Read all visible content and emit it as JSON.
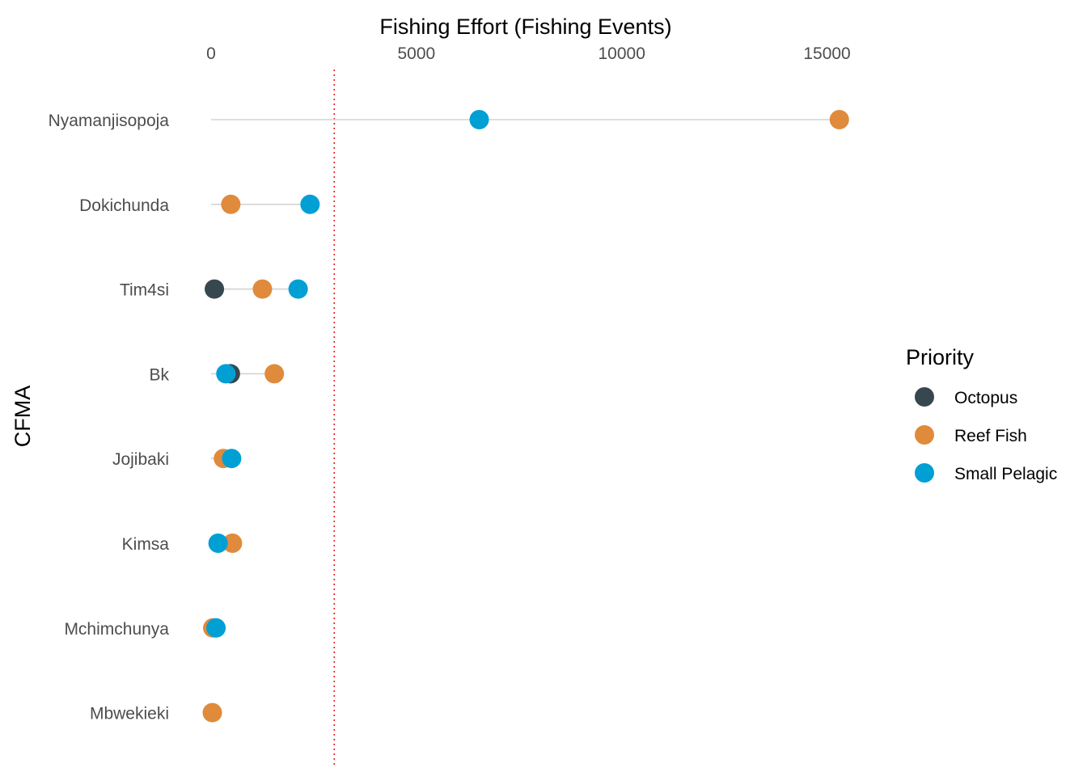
{
  "chart_data": {
    "type": "scatter",
    "subtype": "dot-plot-with-range-segments",
    "title": "",
    "xlabel": "Fishing Effort (Fishing Events)",
    "ylabel": "CFMA",
    "x_axis_position": "top",
    "xlim": [
      0,
      15500
    ],
    "xticks": [
      0,
      5000,
      10000,
      15000
    ],
    "xtick_labels": [
      "0",
      "5000",
      "10000",
      "15000"
    ],
    "reference_line": {
      "x": 3000,
      "style": "dotted",
      "color": "#e41a1c"
    },
    "grid": false,
    "legend": {
      "title": "Priority",
      "position": "right"
    },
    "categories": [
      "Nyamanjisopoja",
      "Dokichunda",
      "Tim4si",
      "Bk",
      "Jojibaki",
      "Kimsa",
      "Mchimchunya",
      "Mbwekieki"
    ],
    "series": [
      {
        "name": "Octopus",
        "color": "#37474f",
        "values": [
          null,
          null,
          80,
          470,
          null,
          null,
          null,
          null
        ]
      },
      {
        "name": "Reef Fish",
        "color": "#e08a3c",
        "values": [
          15300,
          480,
          1250,
          1540,
          300,
          520,
          40,
          30
        ]
      },
      {
        "name": "Small Pelagic",
        "color": "#009fd4",
        "values": [
          6530,
          2410,
          2120,
          360,
          500,
          170,
          120,
          null
        ]
      }
    ]
  }
}
